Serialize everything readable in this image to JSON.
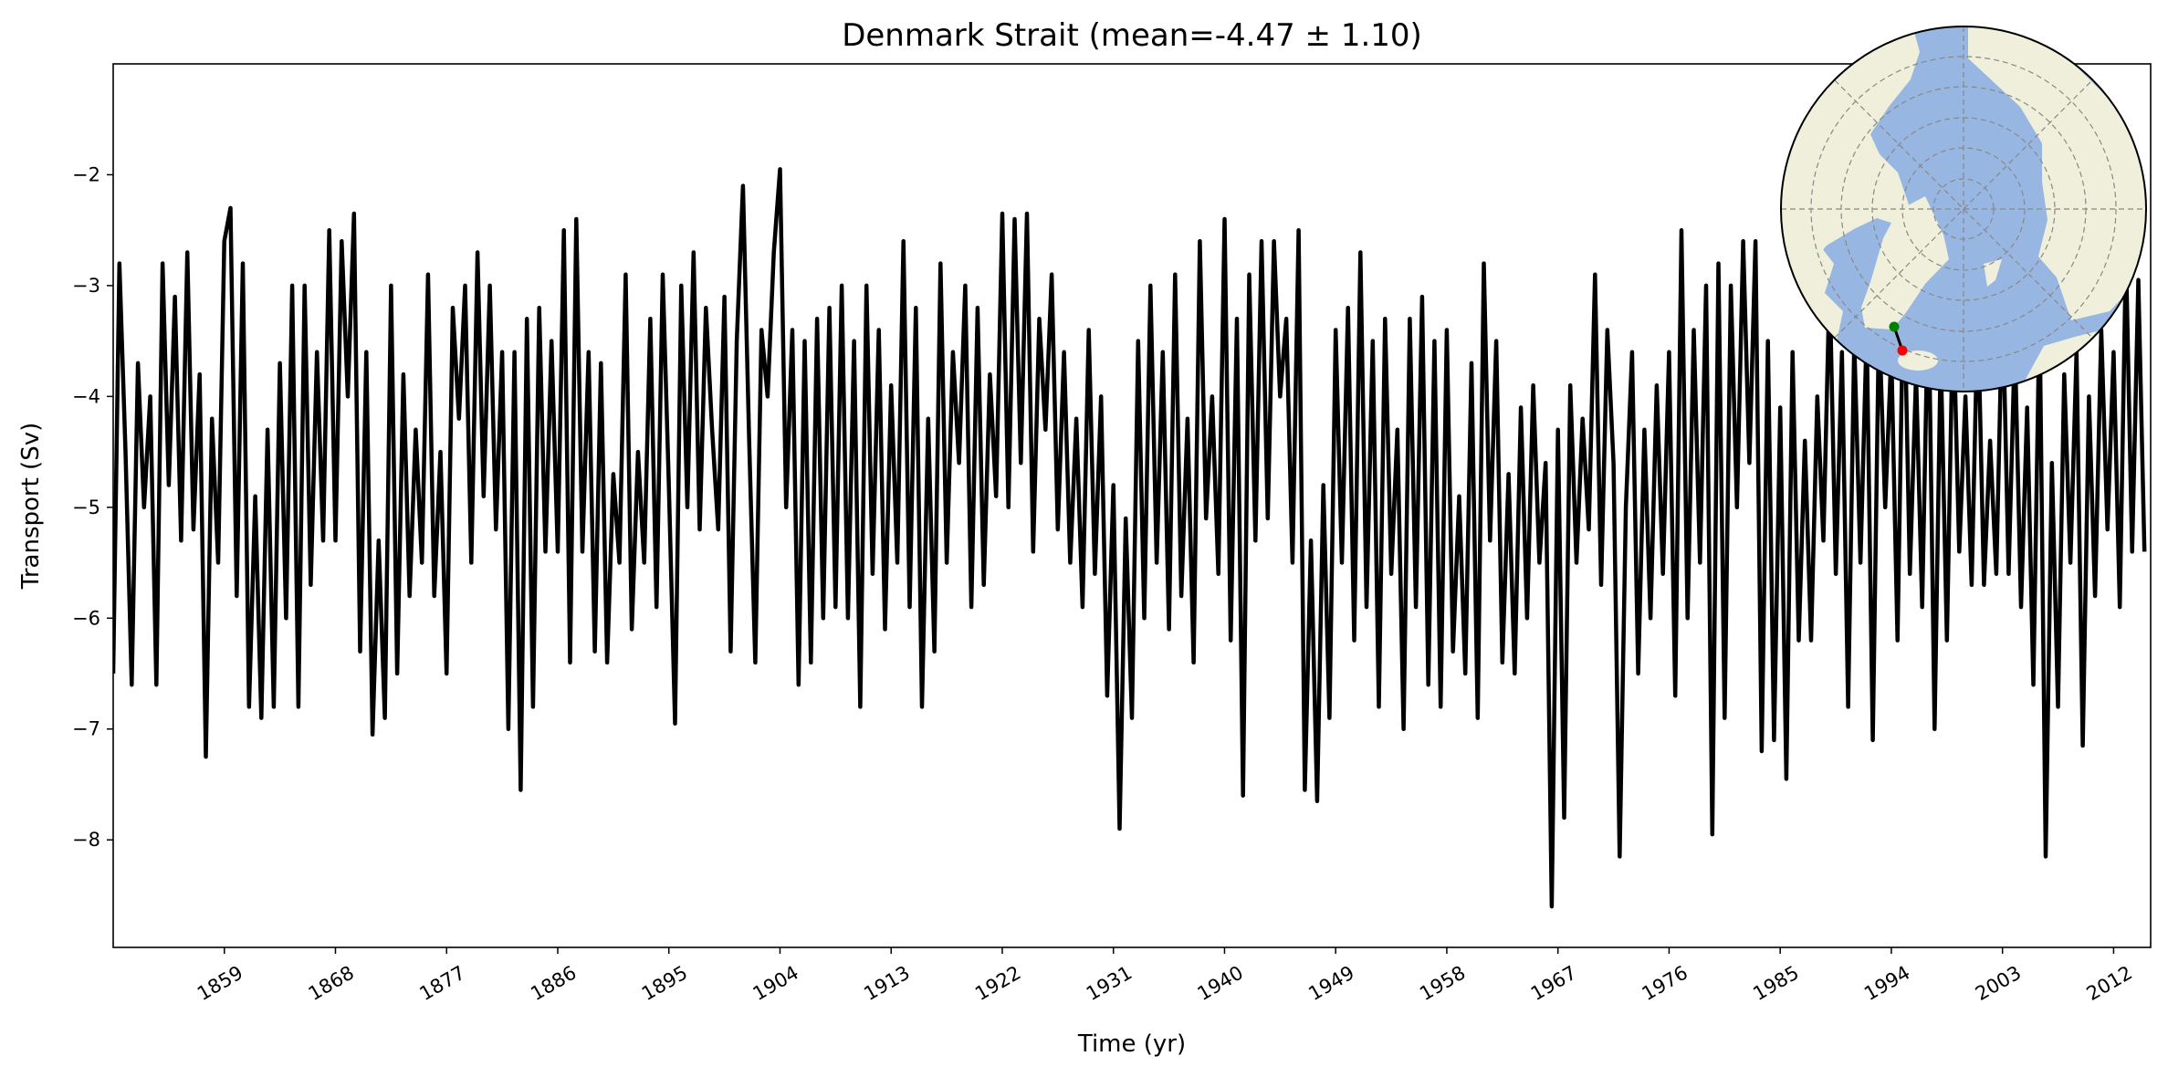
{
  "chart_data": {
    "type": "line",
    "title": "Denmark Strait (mean=-4.47 ± 1.10)",
    "xlabel": "Time (yr)",
    "ylabel": "Transport (Sv)",
    "xlim": [
      1850,
      2015
    ],
    "ylim": [
      -8.97,
      -1.0
    ],
    "x_ticks": [
      "1859",
      "1868",
      "1877",
      "1886",
      "1895",
      "1904",
      "1913",
      "1922",
      "1931",
      "1940",
      "1949",
      "1958",
      "1967",
      "1976",
      "1985",
      "1994",
      "2003",
      "2012"
    ],
    "y_ticks": [
      "-8",
      "-7",
      "-6",
      "-5",
      "-4",
      "-3",
      "-2"
    ],
    "grid": false,
    "line_color": "#000000",
    "series": [
      {
        "x": [
          1850,
          1850.5,
          1851,
          1851.5,
          1852,
          1852.5,
          1853,
          1853.5,
          1854,
          1854.5,
          1855,
          1855.5,
          1856,
          1856.5,
          1857,
          1857.5,
          1858,
          1858.5,
          1859,
          1859.5,
          1860,
          1860.5,
          1861,
          1861.5,
          1862,
          1862.5,
          1863,
          1863.5,
          1864,
          1864.5,
          1865,
          1865.5,
          1866,
          1866.5,
          1867,
          1867.5,
          1868,
          1868.5,
          1869,
          1869.5,
          1870,
          1870.5,
          1871,
          1871.5,
          1872,
          1872.5,
          1873,
          1873.5,
          1874,
          1874.5,
          1875,
          1875.5,
          1876,
          1876.5,
          1877,
          1877.5,
          1878,
          1878.5,
          1879,
          1879.5,
          1880,
          1880.5,
          1881,
          1881.5,
          1882,
          1882.5,
          1883,
          1883.5,
          1884,
          1884.5,
          1885,
          1885.5,
          1886,
          1886.5,
          1887,
          1887.5,
          1888,
          1888.5,
          1889,
          1889.5,
          1890,
          1890.5,
          1891,
          1891.5,
          1892,
          1892.5,
          1893,
          1893.5,
          1894,
          1894.5,
          1895,
          1895.5,
          1896,
          1896.5,
          1897,
          1897.5,
          1898,
          1898.5,
          1899,
          1899.5,
          1900,
          1900.5,
          1901,
          1901.5,
          1902,
          1902.5,
          1903,
          1903.5,
          1904,
          1904.5,
          1905,
          1905.5,
          1906,
          1906.5,
          1907,
          1907.5,
          1908,
          1908.5,
          1909,
          1909.5,
          1910,
          1910.5,
          1911,
          1911.5,
          1912,
          1912.5,
          1913,
          1913.5,
          1914,
          1914.5,
          1915,
          1915.5,
          1916,
          1916.5,
          1917,
          1917.5,
          1918,
          1918.5,
          1919,
          1919.5,
          1920,
          1920.5,
          1921,
          1921.5,
          1922,
          1922.5,
          1923,
          1923.5,
          1924,
          1924.5,
          1925,
          1925.5,
          1926,
          1926.5,
          1927,
          1927.5,
          1928,
          1928.5,
          1929,
          1929.5,
          1930,
          1930.5,
          1931,
          1931.5,
          1932,
          1932.5,
          1933,
          1933.5,
          1934,
          1934.5,
          1935,
          1935.5,
          1936,
          1936.5,
          1937,
          1937.5,
          1938,
          1938.5,
          1939,
          1939.5,
          1940,
          1940.5,
          1941,
          1941.5,
          1942,
          1942.5,
          1943,
          1943.5,
          1944,
          1944.5,
          1945,
          1945.5,
          1946,
          1946.5,
          1947,
          1947.5,
          1948,
          1948.5,
          1949,
          1949.5,
          1950,
          1950.5,
          1951,
          1951.5,
          1952,
          1952.5,
          1953,
          1953.5,
          1954,
          1954.5,
          1955,
          1955.5,
          1956,
          1956.5,
          1957,
          1957.5,
          1958,
          1958.5,
          1959,
          1959.5,
          1960,
          1960.5,
          1961,
          1961.5,
          1962,
          1962.5,
          1963,
          1963.5,
          1964,
          1964.5,
          1965,
          1965.5,
          1966,
          1966.5,
          1967,
          1967.5,
          1968,
          1968.5,
          1969,
          1969.5,
          1970,
          1970.5,
          1971,
          1971.5,
          1972,
          1972.5,
          1973,
          1973.5,
          1974,
          1974.5,
          1975,
          1975.5,
          1976,
          1976.5,
          1977,
          1977.5,
          1978,
          1978.5,
          1979,
          1979.5,
          1980,
          1980.5,
          1981,
          1981.5,
          1982,
          1982.5,
          1983,
          1983.5,
          1984,
          1984.5,
          1985,
          1985.5,
          1986,
          1986.5,
          1987,
          1987.5,
          1988,
          1988.5,
          1989,
          1989.5,
          1990,
          1990.5,
          1991,
          1991.5,
          1992,
          1992.5,
          1993,
          1993.5,
          1994,
          1994.5,
          1995,
          1995.5,
          1996,
          1996.5,
          1997,
          1997.5,
          1998,
          1998.5,
          1999,
          1999.5,
          2000,
          2000.5,
          2001,
          2001.5,
          2002,
          2002.5,
          2003,
          2003.5,
          2004,
          2004.5,
          2005,
          2005.5,
          2006,
          2006.5,
          2007,
          2007.5,
          2008,
          2008.5,
          2009,
          2009.5,
          2010,
          2010.5,
          2011,
          2011.5,
          2012,
          2012.5,
          2013,
          2013.5,
          2014,
          2014.5
        ],
        "values": [
          -6.5,
          -2.8,
          -4.5,
          -6.6,
          -3.7,
          -5.0,
          -4.0,
          -6.6,
          -2.8,
          -4.8,
          -3.1,
          -5.3,
          -2.7,
          -5.2,
          -3.8,
          -7.25,
          -4.2,
          -5.5,
          -2.6,
          -2.3,
          -5.8,
          -2.8,
          -6.8,
          -4.9,
          -6.9,
          -4.3,
          -6.8,
          -3.7,
          -6.0,
          -3.0,
          -6.8,
          -3.0,
          -5.7,
          -3.6,
          -5.3,
          -2.5,
          -5.3,
          -2.6,
          -4.0,
          -2.35,
          -6.3,
          -3.6,
          -7.05,
          -5.3,
          -6.9,
          -3.0,
          -6.5,
          -3.8,
          -5.8,
          -4.3,
          -5.5,
          -2.9,
          -5.8,
          -4.5,
          -6.5,
          -3.2,
          -4.2,
          -3.0,
          -5.5,
          -2.7,
          -4.9,
          -3.0,
          -5.2,
          -3.6,
          -7.0,
          -3.6,
          -7.55,
          -3.3,
          -6.8,
          -3.2,
          -5.4,
          -3.5,
          -5.4,
          -2.5,
          -6.4,
          -2.4,
          -5.4,
          -3.6,
          -6.3,
          -3.7,
          -6.4,
          -4.7,
          -5.5,
          -2.9,
          -6.1,
          -4.5,
          -5.5,
          -3.3,
          -5.9,
          -2.9,
          -4.8,
          -6.95,
          -3.0,
          -5.0,
          -2.7,
          -5.2,
          -3.2,
          -4.3,
          -5.2,
          -3.1,
          -6.3,
          -3.5,
          -2.1,
          -4.4,
          -6.4,
          -3.4,
          -4.0,
          -2.7,
          -1.95,
          -5.0,
          -3.4,
          -6.6,
          -3.5,
          -6.4,
          -3.3,
          -6.0,
          -3.2,
          -5.9,
          -3.0,
          -6.0,
          -3.5,
          -6.8,
          -3.0,
          -5.6,
          -3.4,
          -6.1,
          -3.9,
          -5.5,
          -2.6,
          -5.9,
          -3.2,
          -6.8,
          -4.2,
          -6.3,
          -2.8,
          -5.5,
          -3.6,
          -4.6,
          -3.0,
          -5.9,
          -3.2,
          -5.7,
          -3.8,
          -4.9,
          -2.35,
          -5.0,
          -2.4,
          -4.6,
          -2.35,
          -5.4,
          -3.3,
          -4.3,
          -2.9,
          -5.2,
          -3.6,
          -5.5,
          -4.2,
          -5.9,
          -3.4,
          -5.6,
          -4.0,
          -6.7,
          -4.8,
          -7.9,
          -5.1,
          -6.9,
          -3.5,
          -6.0,
          -3.0,
          -5.5,
          -3.6,
          -6.1,
          -2.9,
          -5.8,
          -4.2,
          -6.4,
          -2.6,
          -5.1,
          -4.0,
          -5.6,
          -2.4,
          -6.2,
          -3.3,
          -7.6,
          -2.9,
          -5.3,
          -2.6,
          -5.1,
          -2.6,
          -4.0,
          -3.3,
          -5.5,
          -2.5,
          -7.55,
          -5.3,
          -7.65,
          -4.8,
          -6.9,
          -3.4,
          -5.5,
          -3.2,
          -6.2,
          -2.7,
          -5.9,
          -3.5,
          -6.8,
          -3.3,
          -5.6,
          -4.3,
          -7.0,
          -3.3,
          -5.9,
          -3.1,
          -6.6,
          -3.5,
          -6.8,
          -3.4,
          -6.3,
          -4.9,
          -6.5,
          -3.7,
          -6.9,
          -2.8,
          -5.3,
          -3.5,
          -6.4,
          -4.7,
          -6.5,
          -4.1,
          -6.0,
          -3.9,
          -5.5,
          -4.6,
          -8.6,
          -4.3,
          -7.8,
          -3.9,
          -5.5,
          -4.2,
          -5.2,
          -2.9,
          -5.7,
          -3.4,
          -4.6,
          -8.15,
          -5.0,
          -3.6,
          -6.5,
          -4.3,
          -6.0,
          -3.9,
          -5.6,
          -3.6,
          -6.7,
          -2.5,
          -6.0,
          -3.4,
          -5.5,
          -3.0,
          -7.95,
          -2.8,
          -6.9,
          -3.0,
          -5.0,
          -2.6,
          -4.6,
          -2.6,
          -7.2,
          -3.5,
          -7.1,
          -4.1,
          -7.45,
          -3.6,
          -6.2,
          -4.4,
          -6.2,
          -4.0,
          -5.3,
          -2.95,
          -5.6,
          -3.6,
          -6.8,
          -3.5,
          -5.5,
          -3.4,
          -7.1,
          -3.3,
          -5.0,
          -3.6,
          -6.2,
          -2.8,
          -5.6,
          -3.8,
          -5.9,
          -3.0,
          -7.0,
          -3.6,
          -6.2,
          -3.2,
          -5.4,
          -4.0,
          -5.7,
          -3.2,
          -5.7,
          -4.4,
          -5.6,
          -3.1,
          -5.6,
          -3.5,
          -5.9,
          -4.1,
          -6.6,
          -3.2,
          -8.15,
          -4.6,
          -6.8,
          -3.8,
          -5.5,
          -3.6,
          -7.15,
          -4.0,
          -5.8,
          -3.4,
          -5.2,
          -3.6,
          -5.9,
          -2.7,
          -5.4,
          -2.95,
          -5.4
        ]
      }
    ],
    "inset_map": {
      "projection": "north-polar-stereographic",
      "land_color": "#efefdb",
      "ocean_color": "#97b6e1",
      "section_start_color": "#008000",
      "section_end_color": "#ff0000"
    }
  }
}
